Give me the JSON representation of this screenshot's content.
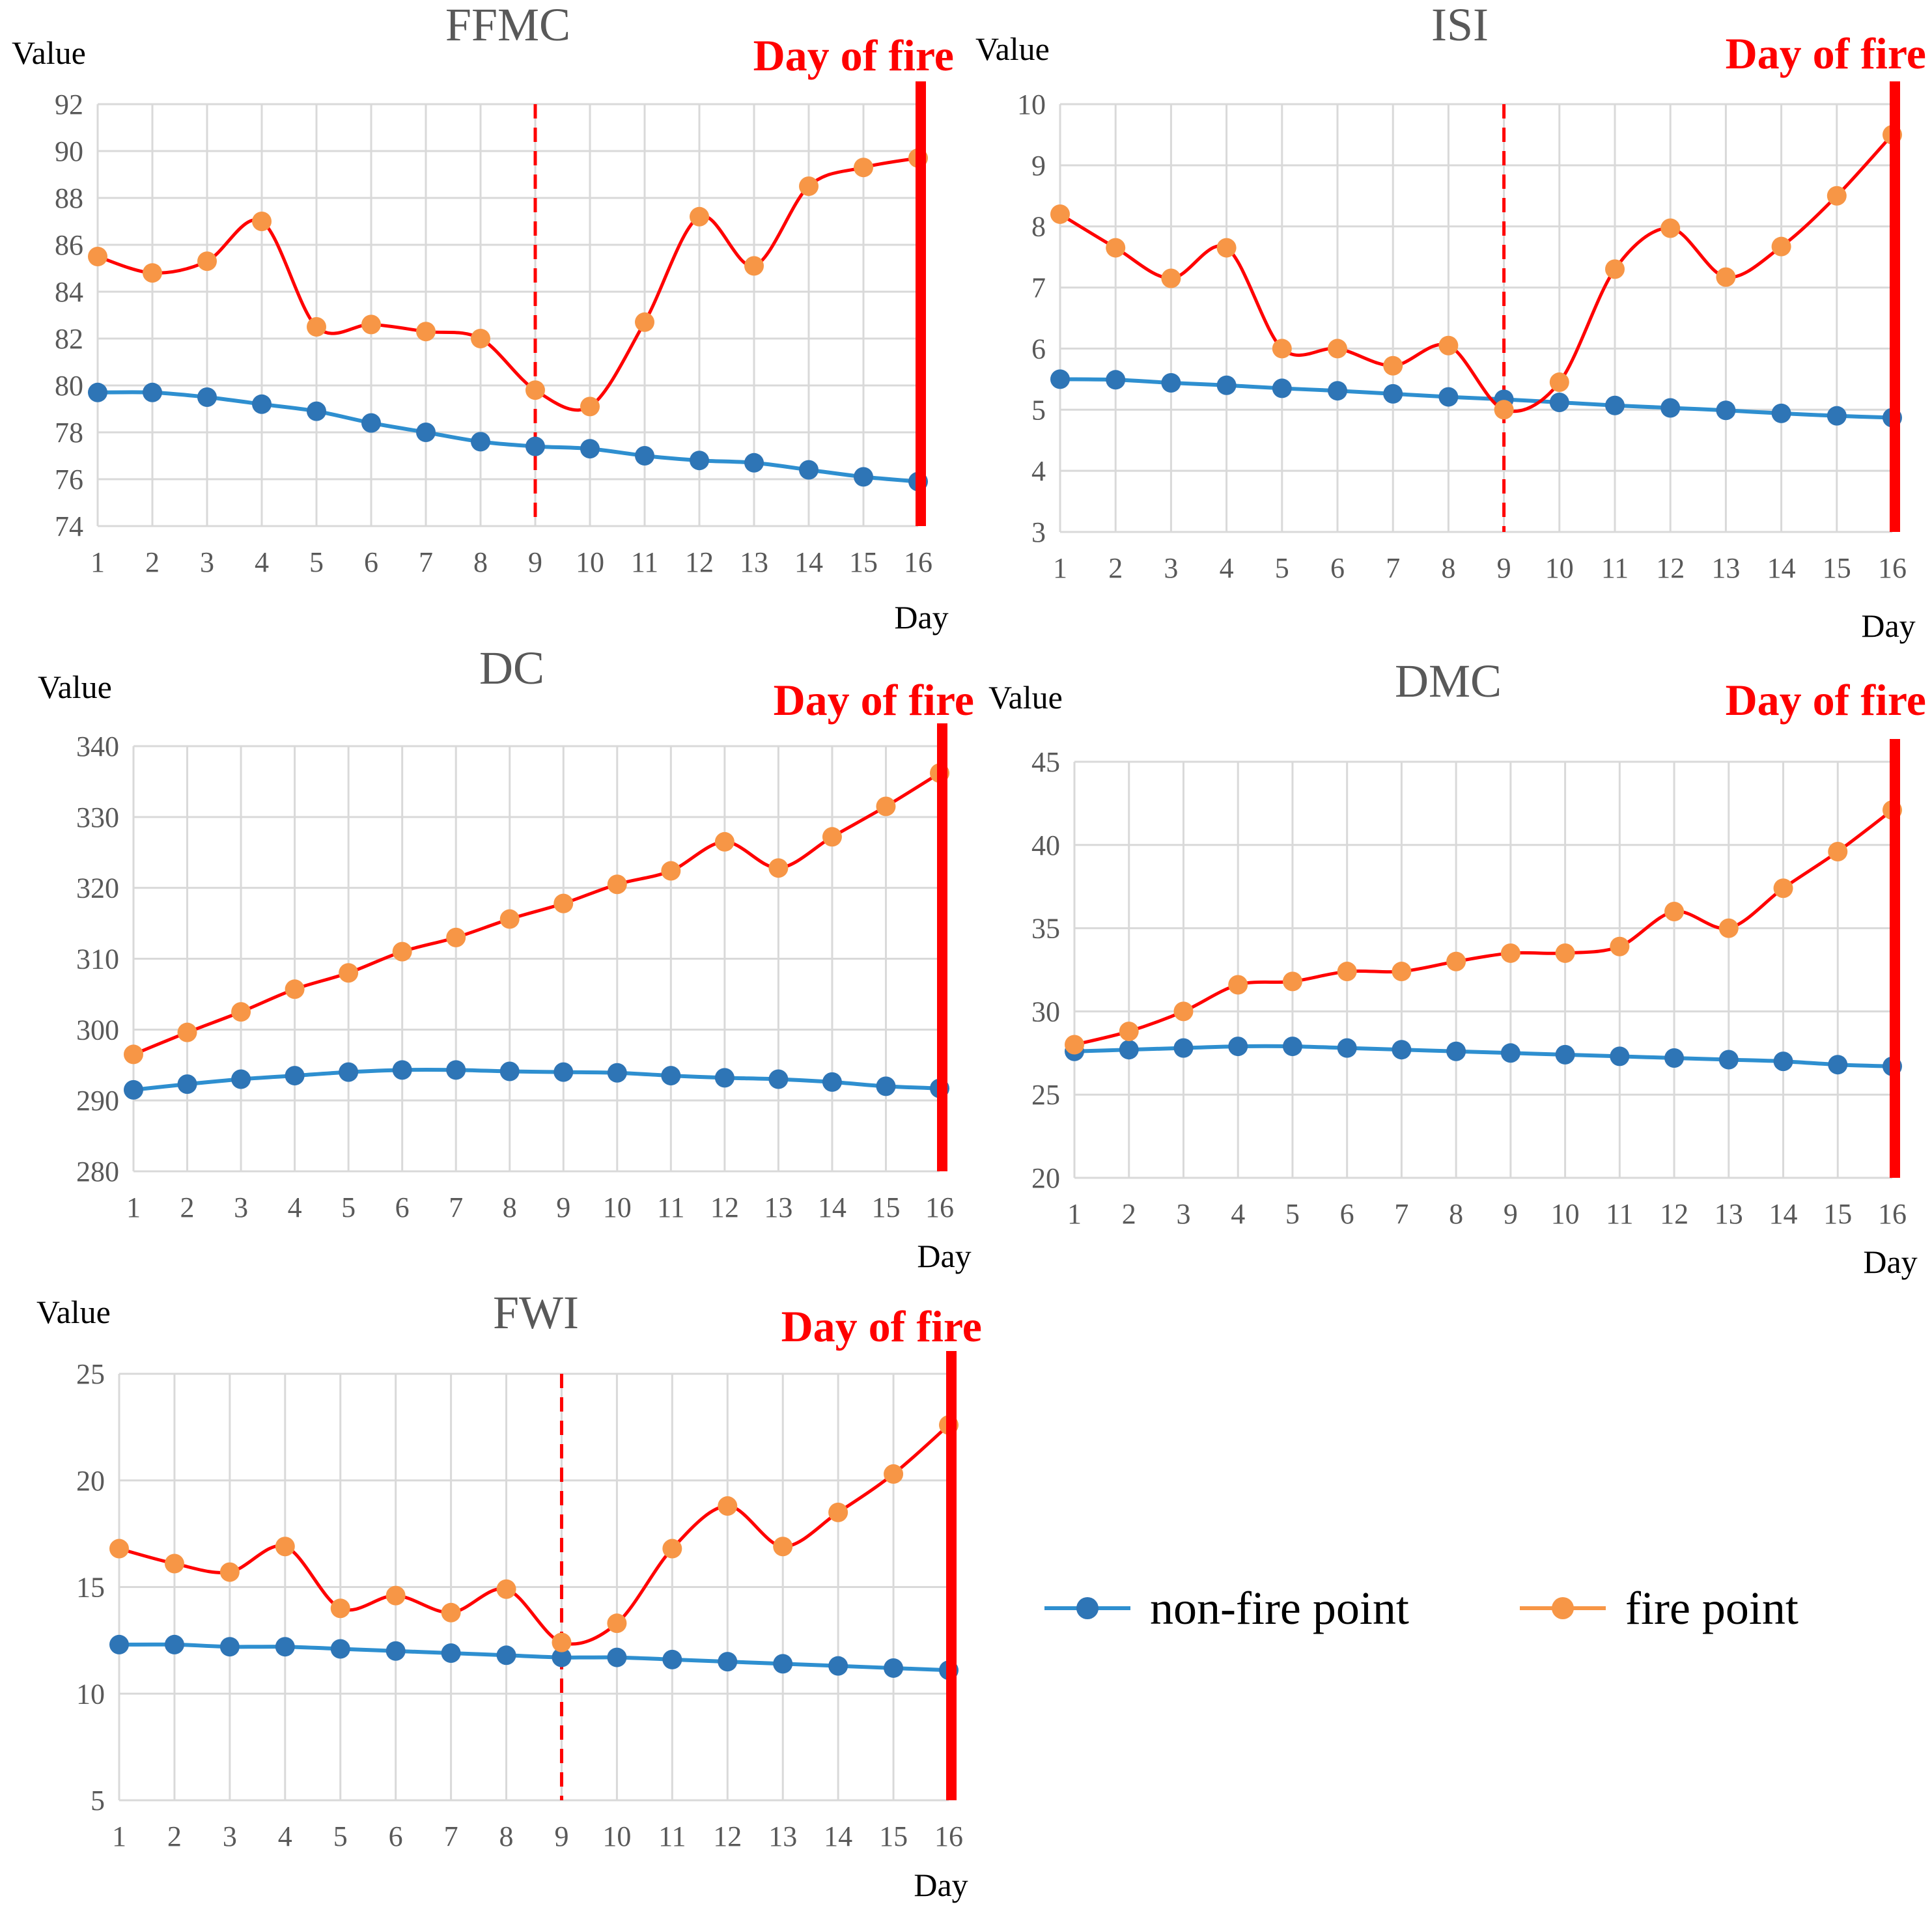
{
  "chart_data": [
    {
      "type": "line",
      "title": "FFMC",
      "ylabel": "Value",
      "xlabel": "Day",
      "ylim": [
        74,
        92
      ],
      "ystep": 2,
      "x": [
        1,
        2,
        3,
        4,
        5,
        6,
        7,
        8,
        9,
        10,
        11,
        12,
        13,
        14,
        15,
        16
      ],
      "series": [
        {
          "name": "non-fire point",
          "values": [
            79.7,
            79.7,
            79.5,
            79.2,
            78.9,
            78.4,
            78.0,
            77.6,
            77.4,
            77.3,
            77.0,
            76.8,
            76.7,
            76.4,
            76.1,
            75.9
          ]
        },
        {
          "name": "fire point",
          "values": [
            85.5,
            84.8,
            85.3,
            87.0,
            82.5,
            82.6,
            82.3,
            82.0,
            79.8,
            79.1,
            82.7,
            87.2,
            85.1,
            88.5,
            89.3,
            89.7
          ]
        }
      ],
      "annotation": "Day of fire",
      "fire_day": 16,
      "dashed_day": 9
    },
    {
      "type": "line",
      "title": "ISI",
      "ylabel": "Value",
      "xlabel": "Day",
      "ylim": [
        3,
        10
      ],
      "ystep": 1,
      "x": [
        1,
        2,
        3,
        4,
        5,
        6,
        7,
        8,
        9,
        10,
        11,
        12,
        13,
        14,
        15,
        16
      ],
      "series": [
        {
          "name": "non-fire point",
          "values": [
            5.5,
            5.49,
            5.44,
            5.4,
            5.35,
            5.31,
            5.26,
            5.21,
            5.17,
            5.12,
            5.07,
            5.03,
            4.99,
            4.94,
            4.9,
            4.87
          ]
        },
        {
          "name": "fire point",
          "values": [
            8.2,
            7.65,
            7.15,
            7.65,
            6.0,
            6.0,
            5.72,
            6.05,
            5.0,
            5.45,
            7.3,
            7.97,
            7.17,
            7.67,
            8.5,
            9.5
          ]
        }
      ],
      "annotation": "Day of fire",
      "fire_day": 16,
      "dashed_day": 9
    },
    {
      "type": "line",
      "title": "DC",
      "ylabel": "Value",
      "xlabel": "Day",
      "ylim": [
        280,
        340
      ],
      "ystep": 10,
      "x": [
        1,
        2,
        3,
        4,
        5,
        6,
        7,
        8,
        9,
        10,
        11,
        12,
        13,
        14,
        15,
        16
      ],
      "series": [
        {
          "name": "non-fire point",
          "values": [
            291.5,
            292.3,
            293.0,
            293.5,
            294.0,
            294.3,
            294.3,
            294.1,
            294.0,
            293.9,
            293.5,
            293.2,
            293.0,
            292.6,
            292.0,
            291.7
          ]
        },
        {
          "name": "fire point",
          "values": [
            296.5,
            299.6,
            302.5,
            305.7,
            308.0,
            311.0,
            313.0,
            315.6,
            317.8,
            320.5,
            322.4,
            326.5,
            322.8,
            327.2,
            331.5,
            336.2
          ]
        }
      ],
      "annotation": "Day of fire",
      "fire_day": 16,
      "dashed_day": null
    },
    {
      "type": "line",
      "title": "DMC",
      "ylabel": "Value",
      "xlabel": "Day",
      "ylim": [
        20,
        45
      ],
      "ystep": 5,
      "x": [
        1,
        2,
        3,
        4,
        5,
        6,
        7,
        8,
        9,
        10,
        11,
        12,
        13,
        14,
        15,
        16
      ],
      "series": [
        {
          "name": "non-fire point",
          "values": [
            27.6,
            27.7,
            27.8,
            27.9,
            27.9,
            27.8,
            27.7,
            27.6,
            27.5,
            27.4,
            27.3,
            27.2,
            27.1,
            27.0,
            26.8,
            26.7
          ]
        },
        {
          "name": "fire point",
          "values": [
            28.0,
            28.8,
            30.0,
            31.6,
            31.8,
            32.4,
            32.4,
            33.0,
            33.5,
            33.5,
            33.9,
            36.0,
            35.0,
            37.4,
            39.6,
            42.1
          ]
        }
      ],
      "annotation": "Day of fire",
      "fire_day": 16,
      "dashed_day": null
    },
    {
      "type": "line",
      "title": "FWI",
      "ylabel": "Value",
      "xlabel": "Day",
      "ylim": [
        5,
        25
      ],
      "ystep": 5,
      "x": [
        1,
        2,
        3,
        4,
        5,
        6,
        7,
        8,
        9,
        10,
        11,
        12,
        13,
        14,
        15,
        16
      ],
      "series": [
        {
          "name": "non-fire point",
          "values": [
            12.3,
            12.3,
            12.2,
            12.2,
            12.1,
            12.0,
            11.9,
            11.8,
            11.7,
            11.7,
            11.6,
            11.5,
            11.4,
            11.3,
            11.2,
            11.1
          ]
        },
        {
          "name": "fire point",
          "values": [
            16.8,
            16.1,
            15.7,
            16.9,
            14.0,
            14.6,
            13.8,
            14.9,
            12.4,
            13.3,
            16.8,
            18.8,
            16.9,
            18.5,
            20.3,
            22.6
          ]
        }
      ],
      "annotation": "Day of fire",
      "fire_day": 16,
      "dashed_day": 9
    }
  ],
  "legend": {
    "items": [
      {
        "label": "non-fire point",
        "color": "#1f77c9",
        "marker_color": "#2e75b6"
      },
      {
        "label": "fire point",
        "color": "#ff7f0e",
        "marker_color": "#f79646"
      }
    ]
  },
  "colors": {
    "non_fire_line": "#2e8fd0",
    "non_fire_marker": "#2e75b6",
    "fire_line": "#ff0000",
    "fire_marker": "#f79646",
    "fire_day_line": "#ff0000",
    "annotation": "#ff0000",
    "grid": "#d9d9d9",
    "title": "#595959"
  }
}
